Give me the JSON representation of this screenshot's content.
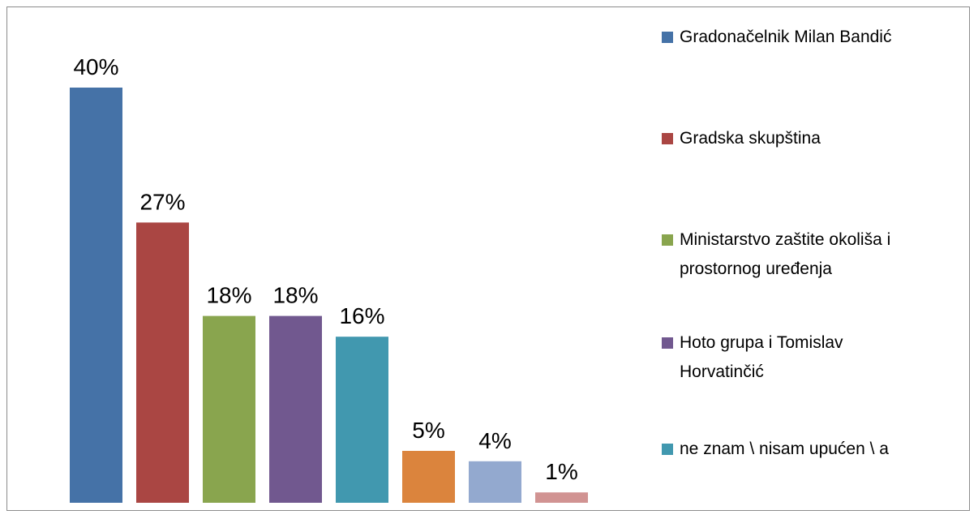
{
  "chart_data": {
    "type": "bar",
    "series": [
      {
        "name": "Gradonačelnik Milan Bandić",
        "color": "#4572a7",
        "values": [
          40
        ],
        "value_labels": [
          "40%"
        ]
      },
      {
        "name": "Gradska skupština",
        "color": "#aa4643",
        "values": [
          27
        ],
        "value_labels": [
          "27%"
        ]
      },
      {
        "name": "Ministarstvo zaštite okoliša i prostornog uređenja",
        "color": "#89a54e",
        "values": [
          18
        ],
        "value_labels": [
          "18%"
        ]
      },
      {
        "name": "Hoto grupa i Tomislav Horvatinčić",
        "color": "#71588f",
        "values": [
          18
        ],
        "value_labels": [
          "18%"
        ]
      },
      {
        "name": "ne znam \\ nisam upućen \\ a",
        "color": "#4198af",
        "values": [
          16
        ],
        "value_labels": [
          "16%"
        ]
      },
      {
        "color": "#db843d",
        "values": [
          5
        ],
        "value_labels": [
          "5%"
        ]
      },
      {
        "color": "#93a9cf",
        "values": [
          4
        ],
        "value_labels": [
          "4%"
        ]
      },
      {
        "color": "#d19392",
        "values": [
          1
        ],
        "value_labels": [
          "1%"
        ]
      }
    ]
  }
}
